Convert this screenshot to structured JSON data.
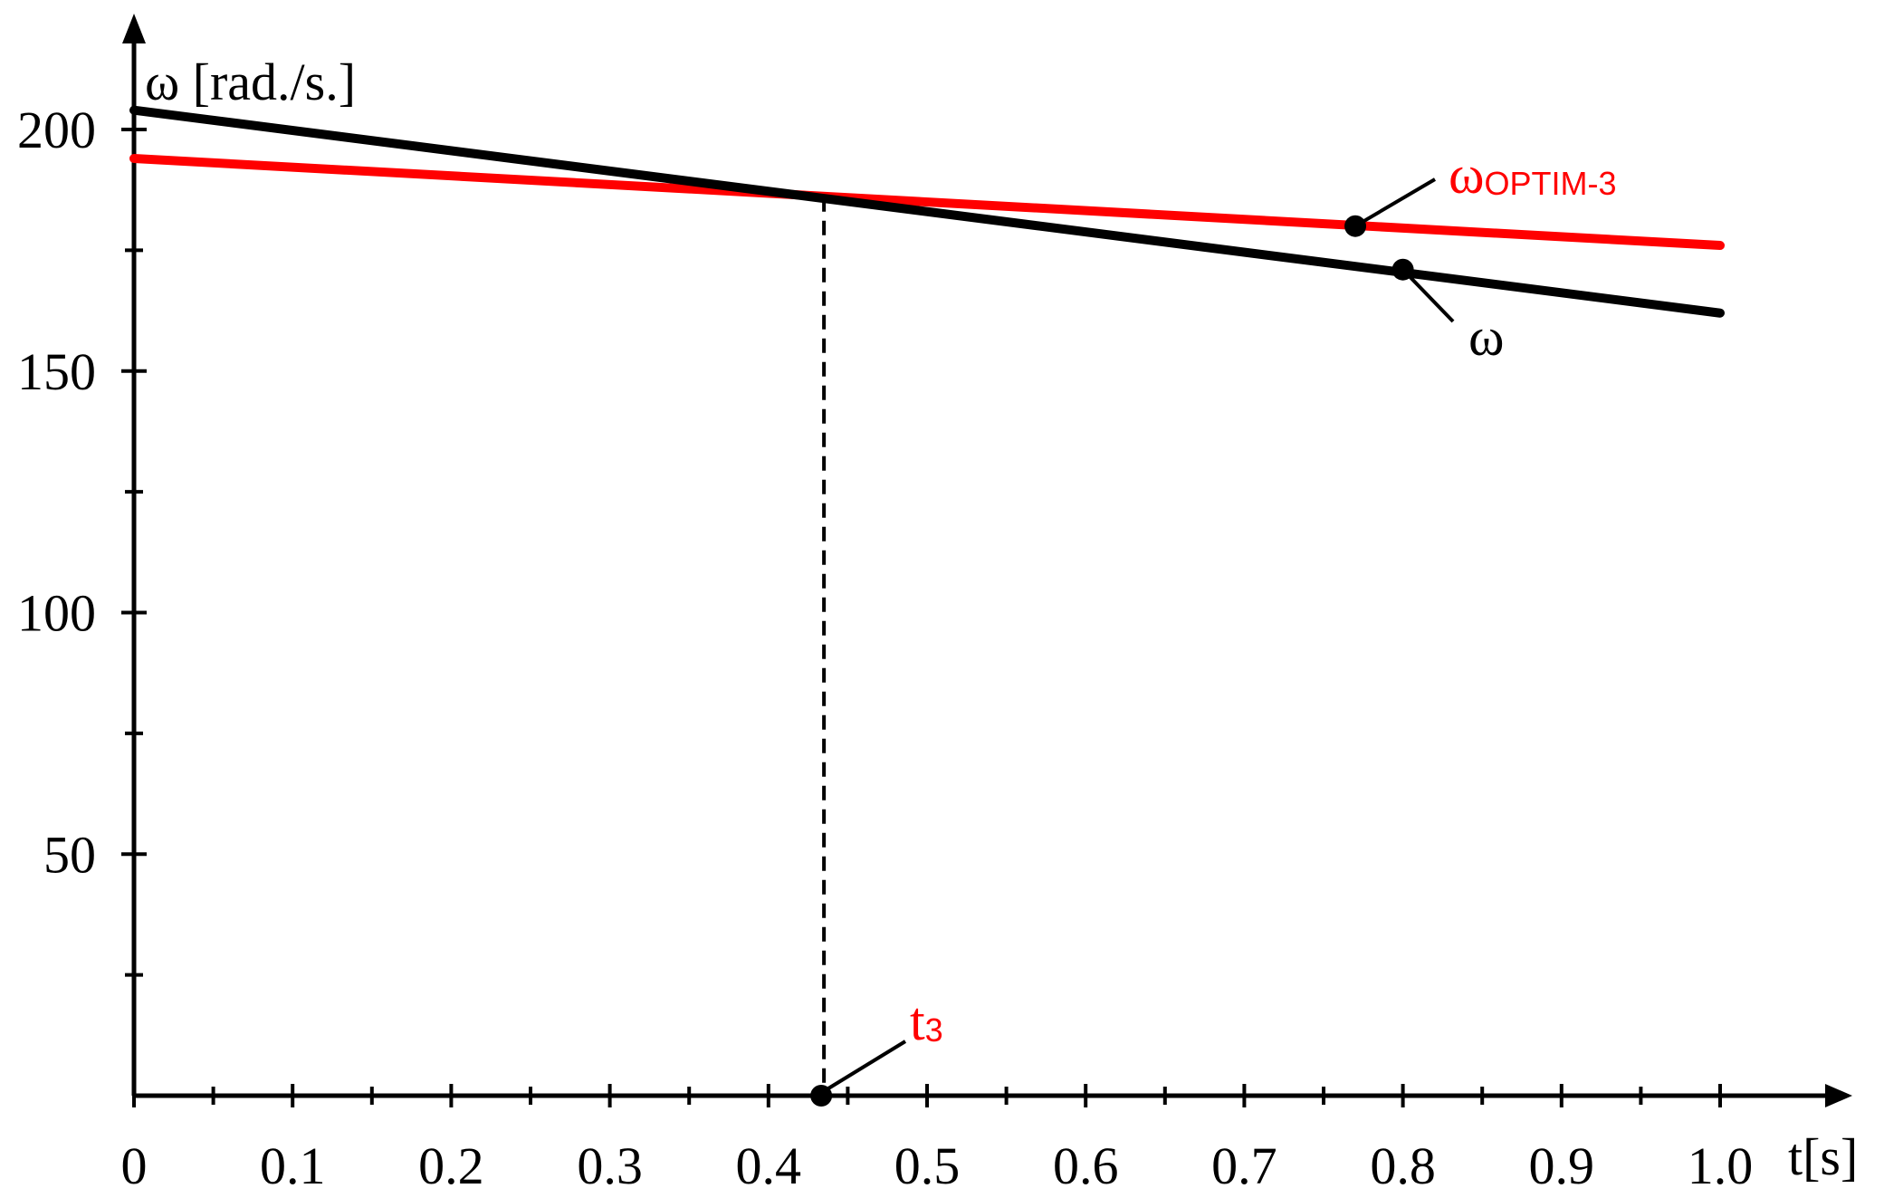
{
  "chart_data": {
    "type": "line",
    "xlabel": "t[s]",
    "ylabel": "ω [rad./s.]",
    "xlim": [
      0,
      1.0
    ],
    "ylim": [
      0,
      200
    ],
    "x_ticks": [
      "0",
      "0.1",
      "0.2",
      "0.3",
      "0.4",
      "0.5",
      "0.6",
      "0.7",
      "0.8",
      "0.9",
      "1.0"
    ],
    "x_tick_values": [
      0,
      0.1,
      0.2,
      0.3,
      0.4,
      0.5,
      0.6,
      0.7,
      0.8,
      0.9,
      1.0
    ],
    "y_ticks": [
      "50",
      "100",
      "150",
      "200"
    ],
    "y_tick_values": [
      50,
      100,
      150,
      200
    ],
    "y_minor_tick_values": [
      25,
      75,
      125,
      175
    ],
    "grid": false,
    "series": [
      {
        "name": "ω",
        "label_main": "ω",
        "label_sub": "",
        "color": "#000000",
        "x": [
          0,
          1.0
        ],
        "y": [
          204,
          162
        ],
        "marker_x": 0.8,
        "marker_y": 171
      },
      {
        "name": "ωOPTIM-3",
        "label_main": "ω",
        "label_sub": "OPTIM-3",
        "color": "#ff0000",
        "x": [
          0,
          1.0
        ],
        "y": [
          194,
          176
        ],
        "marker_x": 0.77,
        "marker_y": 180
      }
    ],
    "annotations": [
      {
        "label_main": "t",
        "label_sub": "3",
        "color": "#ff0000",
        "x": 0.435,
        "y": 186
      }
    ]
  }
}
